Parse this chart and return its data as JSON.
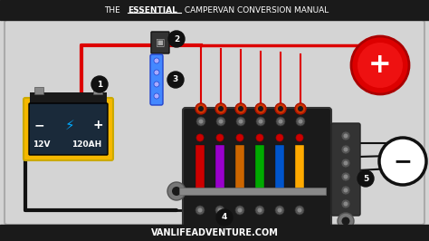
{
  "title_normal": "THE ",
  "title_bold": "ESSENTIAL",
  "title_rest": " CAMPERVAN CONVERSION MANUAL",
  "footer": "VANLIFEADVENTURE.COM",
  "bg_color": "#d4d4d4",
  "header_bg": "#1a1a1a",
  "footer_bg": "#1a1a1a",
  "header_text_color": "#ffffff",
  "footer_text_color": "#ffffff",
  "battery_body_color": "#f5b800",
  "battery_dark": "#1a1a1a",
  "fuse_box_color": "#1a1a1a",
  "bus_bar_color": "#3a3a3a",
  "wire_red": "#dd0000",
  "wire_black": "#111111",
  "positive_circle_color": "#dd0000",
  "negative_circle_color": "#ffffff",
  "fuse_colors": [
    "#cc0000",
    "#9900cc",
    "#cc6600",
    "#00aa00",
    "#0055cc",
    "#ffaa00"
  ],
  "label_bg": "#1a1a1a",
  "label_text": "#ffffff",
  "labels": [
    "1",
    "2",
    "3",
    "4",
    "5"
  ]
}
